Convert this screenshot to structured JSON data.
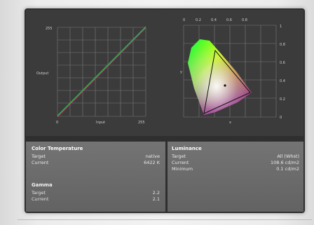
{
  "curve_plot": {
    "y_top_label": "255",
    "y_mid_label": "Output",
    "x_labels": [
      "0",
      "Input",
      "255"
    ]
  },
  "cie_plot": {
    "x_ticks": [
      "0",
      "0.2",
      "0.4",
      "0.6",
      "0.8"
    ],
    "y_ticks": [
      "1",
      "0.8",
      "0.6",
      "0.4",
      "0.2",
      "0"
    ],
    "x_label": "x",
    "y_label": "y"
  },
  "color_temperature": {
    "title": "Color Temperature",
    "rows": [
      {
        "label": "Target",
        "value": "native"
      },
      {
        "label": "Current",
        "value": "6422 K"
      }
    ]
  },
  "gamma": {
    "title": "Gamma",
    "rows": [
      {
        "label": "Target",
        "value": "2.2"
      },
      {
        "label": "Current",
        "value": "2.1"
      }
    ]
  },
  "luminance": {
    "title": "Luminance",
    "rows": [
      {
        "label": "Target",
        "value": "All (Whst)"
      },
      {
        "label": "Current",
        "value": "108.6 cd/m2"
      },
      {
        "label": "Minimum",
        "value": "0.1 cd/m2"
      }
    ]
  },
  "colors": {
    "panel": "#2f2f2f",
    "plot_bg": "#3b3b3b",
    "info_bg": "#6b6b6b",
    "grid": "#7a7a7a"
  }
}
